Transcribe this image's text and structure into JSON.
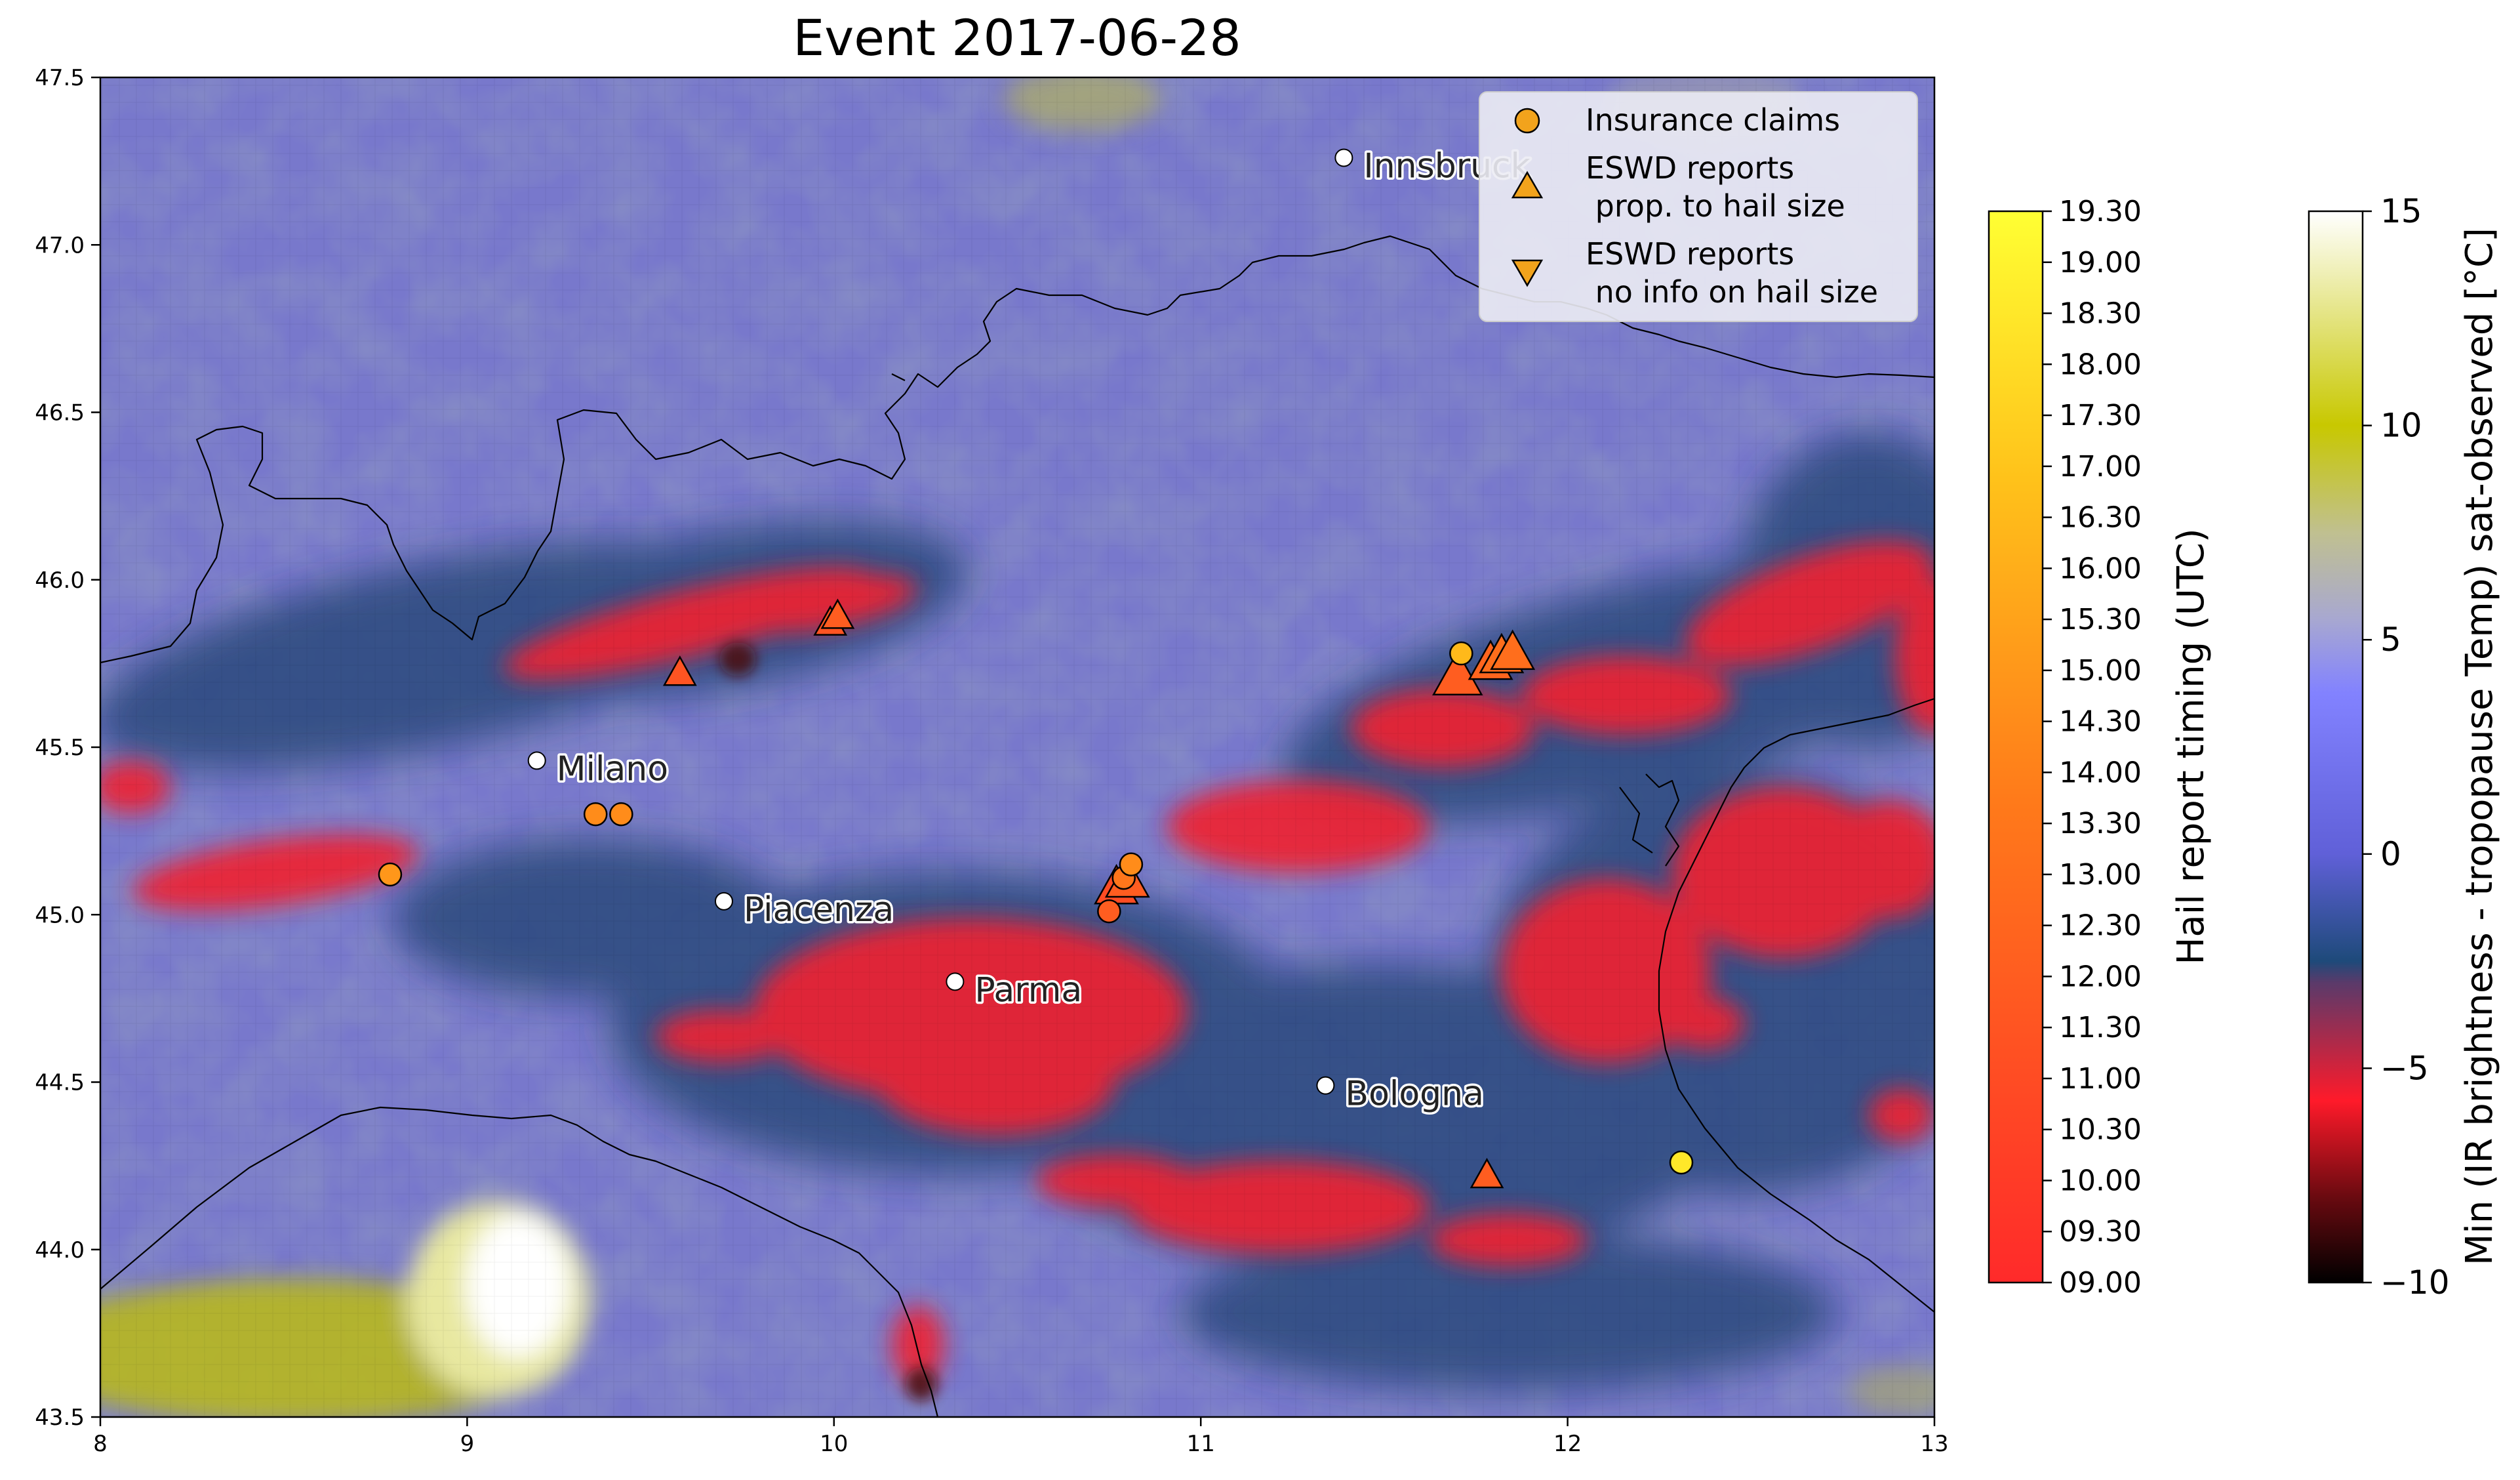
{
  "title": "Event 2017-06-28",
  "map": {
    "xlim": [
      8,
      13
    ],
    "ylim": [
      43.5,
      47.5
    ],
    "x_ticks": [
      8,
      9,
      10,
      11,
      12,
      13
    ],
    "y_ticks": [
      43.5,
      44.0,
      44.5,
      45.0,
      45.5,
      46.0,
      46.5,
      47.0,
      47.5
    ],
    "x_tick_labels": [
      "8",
      "9",
      "10",
      "11",
      "12",
      "13"
    ],
    "y_tick_labels": [
      "43.5",
      "44.0",
      "44.5",
      "45.0",
      "45.5",
      "46.0",
      "46.5",
      "47.0",
      "47.5"
    ]
  },
  "cities": [
    {
      "name": "Innsbruck",
      "lon": 11.39,
      "lat": 47.26
    },
    {
      "name": "Milano",
      "lon": 9.19,
      "lat": 45.46
    },
    {
      "name": "Piacenza",
      "lon": 9.7,
      "lat": 45.04
    },
    {
      "name": "Parma",
      "lon": 10.33,
      "lat": 44.8
    },
    {
      "name": "Bologna",
      "lon": 11.34,
      "lat": 44.49
    }
  ],
  "chart_data": {
    "type": "scatter",
    "title": "Event 2017-06-28",
    "xlim": [
      8,
      13
    ],
    "ylim": [
      43.5,
      47.5
    ],
    "series": [
      {
        "name": "Insurance claims",
        "marker": "circle",
        "points": [
          {
            "lon": 8.79,
            "lat": 45.12,
            "time": 15.0
          },
          {
            "lon": 9.35,
            "lat": 45.3,
            "time": 14.5
          },
          {
            "lon": 9.42,
            "lat": 45.3,
            "time": 14.5
          },
          {
            "lon": 10.75,
            "lat": 45.01,
            "time": 12.0
          },
          {
            "lon": 10.79,
            "lat": 45.11,
            "time": 13.5
          },
          {
            "lon": 10.81,
            "lat": 45.15,
            "time": 14.5
          },
          {
            "lon": 11.71,
            "lat": 45.78,
            "time": 16.5
          },
          {
            "lon": 12.31,
            "lat": 44.26,
            "time": 18.5
          }
        ]
      },
      {
        "name": "ESWD reports\n prop. to hail size",
        "marker": "triangle-up",
        "points": [
          {
            "lon": 9.58,
            "lat": 45.72,
            "time": 11.5,
            "size": 1.0
          },
          {
            "lon": 9.99,
            "lat": 45.87,
            "time": 11.5,
            "size": 1.0
          },
          {
            "lon": 10.01,
            "lat": 45.89,
            "time": 12.0,
            "size": 1.0
          },
          {
            "lon": 10.77,
            "lat": 45.08,
            "time": 11.0,
            "size": 2.0
          },
          {
            "lon": 10.8,
            "lat": 45.1,
            "time": 12.0,
            "size": 2.0
          },
          {
            "lon": 11.7,
            "lat": 45.71,
            "time": 12.0,
            "size": 2.5
          },
          {
            "lon": 11.79,
            "lat": 45.75,
            "time": 12.5,
            "size": 2.0
          },
          {
            "lon": 11.82,
            "lat": 45.77,
            "time": 13.0,
            "size": 2.0
          },
          {
            "lon": 11.85,
            "lat": 45.78,
            "time": 13.0,
            "size": 2.0
          },
          {
            "lon": 11.78,
            "lat": 44.22,
            "time": 12.0,
            "size": 1.0
          }
        ]
      },
      {
        "name": "ESWD reports\n no info on hail size",
        "marker": "triangle-down",
        "points": []
      }
    ]
  },
  "colorbar_time": {
    "label": "Hail report timing (UTC)",
    "ticks": [
      "09.00",
      "09.30",
      "10.00",
      "10.30",
      "11.00",
      "11.30",
      "12.00",
      "12.30",
      "13.00",
      "13.30",
      "14.00",
      "14.30",
      "15.00",
      "15.30",
      "16.00",
      "16.30",
      "17.00",
      "17.30",
      "18.00",
      "18.30",
      "19.00",
      "19.30"
    ],
    "range": [
      9.0,
      19.5
    ],
    "colors": [
      "#ff2a2a",
      "#ff8c1a",
      "#ffd21a",
      "#ffff33"
    ]
  },
  "colorbar_temp": {
    "label": "Min (IR brightness - tropopause Temp) sat-observed [°C]",
    "ticks": [
      "−10",
      "−5",
      "0",
      "5",
      "10",
      "15"
    ],
    "range": [
      -10,
      15
    ],
    "colors": [
      "#000000",
      "#ff1a2a",
      "#1e4a7a",
      "#7c7cff",
      "#c8c8a0",
      "#c8c800",
      "#ffffff"
    ]
  },
  "legend": {
    "items": [
      "Insurance claims",
      "ESWD reports\n prop. to hail size",
      "ESWD reports\n no info on hail size"
    ]
  },
  "colors": {
    "background_field": "#7a7ad0",
    "cloud_field": "#2a4878",
    "hot_field": "#ee2833",
    "marker_edge": "#000000"
  }
}
